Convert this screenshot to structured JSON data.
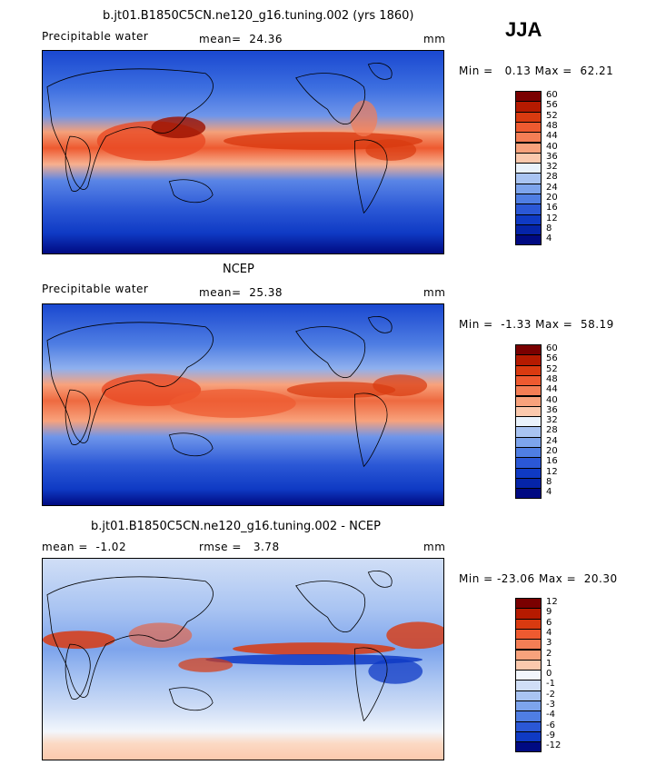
{
  "season": "JJA",
  "panels": [
    {
      "title": "b.jt01.B1850C5CN.ne120_g16.tuning.002 (yrs 1860)",
      "left_label": "Precipitable water",
      "stat_label": "mean=  24.36",
      "units": "mm",
      "minmax": "Min =   0.13 Max =  62.21",
      "colorbar": {
        "labels": [
          "60",
          "56",
          "52",
          "48",
          "44",
          "40",
          "36",
          "32",
          "28",
          "24",
          "20",
          "16",
          "12",
          "8",
          "4"
        ],
        "colors": [
          "#7a0000",
          "#b51a00",
          "#d93a10",
          "#ee5a30",
          "#f47e55",
          "#f8a27c",
          "#fbc9ad",
          "#e9f2fb",
          "#a9c4f2",
          "#7da4ec",
          "#4f7ee3",
          "#2b58d6",
          "#0f3ac4",
          "#0524a8",
          "#000a82"
        ]
      }
    },
    {
      "title": "NCEP",
      "left_label": "Precipitable water",
      "stat_label": "mean=  25.38",
      "units": "mm",
      "minmax": "Min =  -1.33 Max =  58.19",
      "colorbar": {
        "labels": [
          "60",
          "56",
          "52",
          "48",
          "44",
          "40",
          "36",
          "32",
          "28",
          "24",
          "20",
          "16",
          "12",
          "8",
          "4"
        ],
        "colors": [
          "#7a0000",
          "#b51a00",
          "#d93a10",
          "#ee5a30",
          "#f47e55",
          "#f8a27c",
          "#fbc9ad",
          "#e9f2fb",
          "#a9c4f2",
          "#7da4ec",
          "#4f7ee3",
          "#2b58d6",
          "#0f3ac4",
          "#0524a8",
          "#000a82"
        ]
      }
    },
    {
      "title": "b.jt01.B1850C5CN.ne120_g16.tuning.002 - NCEP",
      "left_label": "mean =  -1.02",
      "stat_label": "rmse =   3.78",
      "units": "mm",
      "minmax": "Min = -23.06 Max =  20.30",
      "colorbar": {
        "labels": [
          "12",
          "9",
          "6",
          "4",
          "3",
          "2",
          "1",
          "0",
          "-1",
          "-2",
          "-3",
          "-4",
          "-6",
          "-9",
          "-12"
        ],
        "colors": [
          "#7a0000",
          "#b51a00",
          "#d93a10",
          "#ee5a30",
          "#f47e55",
          "#f8a27c",
          "#fbc9ad",
          "#f2f6fc",
          "#d0def6",
          "#a9c4f2",
          "#7da4ec",
          "#4f7ee3",
          "#2b58d6",
          "#0f3ac4",
          "#000a82"
        ]
      }
    }
  ]
}
